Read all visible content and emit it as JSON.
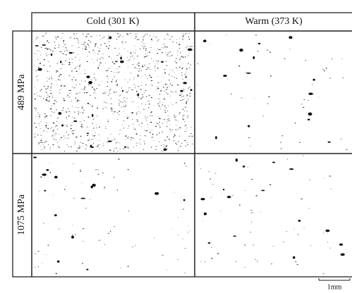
{
  "figure": {
    "columns": [
      "Cold (301 K)",
      "Warm (373 K)"
    ],
    "rows": [
      "489 MPa",
      "1075 MPa"
    ],
    "scale_bar": "1mm"
  }
}
